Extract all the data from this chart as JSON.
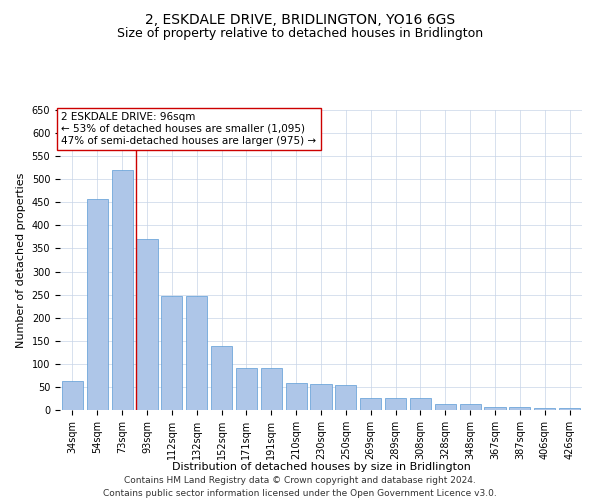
{
  "title": "2, ESKDALE DRIVE, BRIDLINGTON, YO16 6GS",
  "subtitle": "Size of property relative to detached houses in Bridlington",
  "xlabel": "Distribution of detached houses by size in Bridlington",
  "ylabel": "Number of detached properties",
  "categories": [
    "34sqm",
    "54sqm",
    "73sqm",
    "93sqm",
    "112sqm",
    "132sqm",
    "152sqm",
    "171sqm",
    "191sqm",
    "210sqm",
    "230sqm",
    "250sqm",
    "269sqm",
    "289sqm",
    "308sqm",
    "328sqm",
    "348sqm",
    "367sqm",
    "387sqm",
    "406sqm",
    "426sqm"
  ],
  "values": [
    62,
    458,
    520,
    370,
    247,
    247,
    138,
    92,
    92,
    58,
    57,
    55,
    26,
    26,
    26,
    12,
    12,
    7,
    7,
    5,
    5
  ],
  "bar_color": "#aec6e8",
  "bar_edge_color": "#5b9bd5",
  "vline_color": "#cc0000",
  "vline_index": 3,
  "annotation_text": "2 ESKDALE DRIVE: 96sqm\n← 53% of detached houses are smaller (1,095)\n47% of semi-detached houses are larger (975) →",
  "annotation_box_color": "#ffffff",
  "annotation_box_edge": "#cc0000",
  "ylim": [
    0,
    650
  ],
  "yticks": [
    0,
    50,
    100,
    150,
    200,
    250,
    300,
    350,
    400,
    450,
    500,
    550,
    600,
    650
  ],
  "footer": "Contains HM Land Registry data © Crown copyright and database right 2024.\nContains public sector information licensed under the Open Government Licence v3.0.",
  "bg_color": "#ffffff",
  "grid_color": "#c8d4e8",
  "title_fontsize": 10,
  "subtitle_fontsize": 9,
  "axis_label_fontsize": 8,
  "tick_fontsize": 7,
  "annotation_fontsize": 7.5,
  "footer_fontsize": 6.5
}
